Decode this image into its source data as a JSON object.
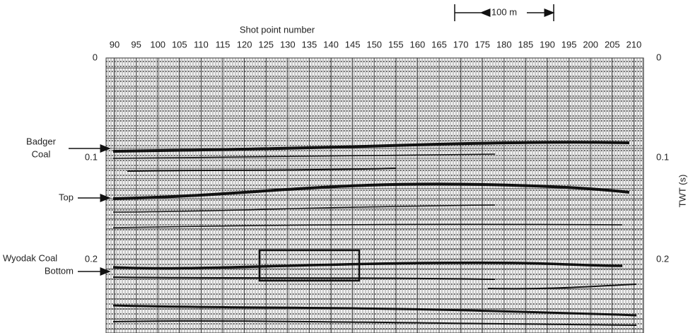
{
  "scale_bar": "100 m",
  "x_axis_title": "Shot point number",
  "shot_points": [
    "90",
    "95",
    "100",
    "105",
    "110",
    "115",
    "120",
    "125",
    "130",
    "135",
    "140",
    "145",
    "150",
    "155",
    "160",
    "165",
    "170",
    "175",
    "180",
    "185",
    "190",
    "195",
    "200",
    "205",
    "210"
  ],
  "left_ticks": [
    "0",
    "0.1",
    "0.2"
  ],
  "right_ticks": [
    "0",
    "0.1",
    "0.2"
  ],
  "right_axis_title": "TWT (s)",
  "annotations": {
    "badger_1": "Badger",
    "badger_2": "Coal",
    "top": "Top",
    "wyodak": "Wyodak Coal",
    "bottom": "Bottom"
  }
}
